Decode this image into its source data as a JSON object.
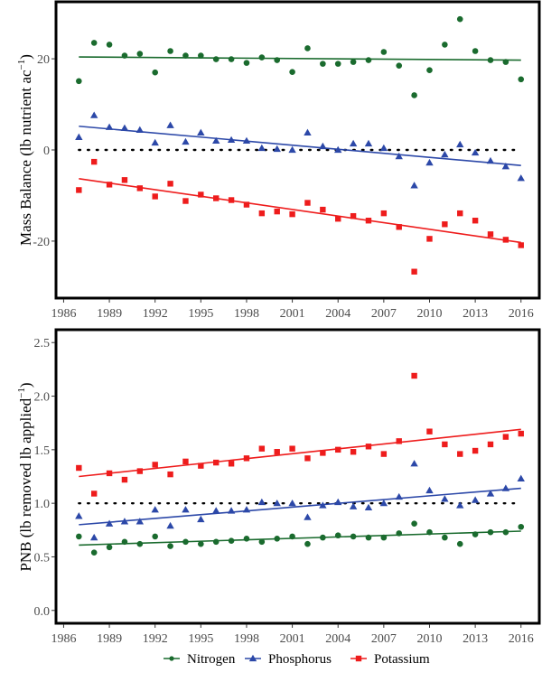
{
  "chart_data": [
    {
      "type": "scatter",
      "title": "",
      "xlabel": "",
      "ylabel": "Mass Balance (lb nutrient ac",
      "ylabel_superscript": "−1",
      "ylabel_suffix": ")",
      "xlim": [
        1985.5,
        2017.2
      ],
      "ylim": [
        -32.5,
        32.5
      ],
      "xticks": [
        1986,
        1989,
        1992,
        1995,
        1998,
        2001,
        2004,
        2007,
        2010,
        2013,
        2016
      ],
      "xtick_labels": [
        "1986",
        "1989",
        "1992",
        "1995",
        "1998",
        "2001",
        "2004",
        "2007",
        "2010",
        "2013",
        "2016"
      ],
      "yticks": [
        -20,
        0,
        20
      ],
      "ytick_labels": [
        "-20",
        "0",
        "20"
      ],
      "reference_line": {
        "value": 0,
        "style": "dotted"
      },
      "grid": false,
      "x": [
        1987,
        1988,
        1989,
        1990,
        1991,
        1992,
        1993,
        1994,
        1995,
        1996,
        1997,
        1998,
        1999,
        2000,
        2001,
        2002,
        2003,
        2004,
        2005,
        2006,
        2007,
        2008,
        2009,
        2010,
        2011,
        2012,
        2013,
        2014,
        2015,
        2016
      ],
      "series": [
        {
          "name": "Nitrogen",
          "marker": "circle",
          "values": [
            15.1,
            23.5,
            23.1,
            20.7,
            21.1,
            17.0,
            21.7,
            20.7,
            20.7,
            19.9,
            19.9,
            19.1,
            20.3,
            19.7,
            17.1,
            22.3,
            18.9,
            18.9,
            19.3,
            19.7,
            21.5,
            18.5,
            12.0,
            17.5,
            23.1,
            28.7,
            21.7,
            19.7,
            19.3,
            15.5
          ],
          "trend": [
            20.4,
            19.7
          ]
        },
        {
          "name": "Phosphorus",
          "marker": "triangle",
          "values": [
            2.8,
            7.6,
            5.0,
            4.8,
            4.4,
            1.6,
            5.4,
            1.8,
            3.8,
            2.0,
            2.2,
            2.0,
            0.4,
            0.2,
            0.0,
            3.8,
            0.8,
            0.0,
            1.4,
            1.4,
            0.4,
            -1.4,
            -7.8,
            -2.8,
            -1.0,
            1.2,
            -0.6,
            -2.4,
            -3.6,
            -6.2
          ],
          "trend": [
            5.2,
            -3.4
          ]
        },
        {
          "name": "Potassium",
          "marker": "square",
          "values": [
            -8.8,
            -2.6,
            -7.6,
            -6.6,
            -8.4,
            -10.2,
            -7.4,
            -11.2,
            -9.8,
            -10.6,
            -11.0,
            -12.0,
            -13.9,
            -13.5,
            -14.1,
            -11.6,
            -13.1,
            -15.1,
            -14.5,
            -15.5,
            -13.9,
            -16.9,
            -26.7,
            -19.5,
            -16.3,
            -13.9,
            -15.5,
            -18.5,
            -19.7,
            -20.9
          ],
          "trend": [
            -6.3,
            -20.3
          ]
        }
      ]
    },
    {
      "type": "scatter",
      "title": "",
      "xlabel": "",
      "ylabel": "PNB (lb removed lb applied",
      "ylabel_superscript": "−1",
      "ylabel_suffix": ")",
      "xlim": [
        1985.5,
        2017.2
      ],
      "ylim": [
        -0.12,
        2.62
      ],
      "xticks": [
        1986,
        1989,
        1992,
        1995,
        1998,
        2001,
        2004,
        2007,
        2010,
        2013,
        2016
      ],
      "xtick_labels": [
        "1986",
        "1989",
        "1992",
        "1995",
        "1998",
        "2001",
        "2004",
        "2007",
        "2010",
        "2013",
        "2016"
      ],
      "yticks": [
        0.0,
        0.5,
        1.0,
        1.5,
        2.0,
        2.5
      ],
      "ytick_labels": [
        "0.0",
        "0.5",
        "1.0",
        "1.5",
        "2.0",
        "2.5"
      ],
      "reference_line": {
        "value": 1.0,
        "style": "dotted"
      },
      "grid": false,
      "x": [
        1987,
        1988,
        1989,
        1990,
        1991,
        1992,
        1993,
        1994,
        1995,
        1996,
        1997,
        1998,
        1999,
        2000,
        2001,
        2002,
        2003,
        2004,
        2005,
        2006,
        2007,
        2008,
        2009,
        2010,
        2011,
        2012,
        2013,
        2014,
        2015,
        2016
      ],
      "series": [
        {
          "name": "Nitrogen",
          "marker": "circle",
          "values": [
            0.69,
            0.54,
            0.59,
            0.64,
            0.62,
            0.69,
            0.6,
            0.64,
            0.62,
            0.64,
            0.65,
            0.67,
            0.64,
            0.67,
            0.69,
            0.62,
            0.68,
            0.7,
            0.69,
            0.68,
            0.68,
            0.72,
            0.81,
            0.73,
            0.68,
            0.62,
            0.71,
            0.73,
            0.73,
            0.78
          ],
          "trend": [
            0.61,
            0.74
          ]
        },
        {
          "name": "Phosphorus",
          "marker": "triangle",
          "values": [
            0.88,
            0.68,
            0.81,
            0.83,
            0.83,
            0.94,
            0.79,
            0.94,
            0.85,
            0.93,
            0.93,
            0.94,
            1.01,
            1.0,
            1.0,
            0.87,
            0.98,
            1.01,
            0.97,
            0.96,
            1.0,
            1.06,
            1.37,
            1.12,
            1.04,
            0.98,
            1.03,
            1.09,
            1.14,
            1.23
          ],
          "trend": [
            0.8,
            1.14
          ]
        },
        {
          "name": "Potassium",
          "marker": "square",
          "values": [
            1.33,
            1.09,
            1.28,
            1.22,
            1.3,
            1.36,
            1.27,
            1.39,
            1.35,
            1.38,
            1.37,
            1.42,
            1.51,
            1.48,
            1.51,
            1.42,
            1.47,
            1.5,
            1.48,
            1.53,
            1.46,
            1.58,
            2.19,
            1.67,
            1.55,
            1.46,
            1.49,
            1.55,
            1.62,
            1.65
          ],
          "trend": [
            1.25,
            1.69
          ]
        }
      ]
    }
  ],
  "legend": {
    "placement": "bottom",
    "items": [
      {
        "name": "Nitrogen",
        "marker": "circle"
      },
      {
        "name": "Phosphorus",
        "marker": "triangle"
      },
      {
        "name": "Potassium",
        "marker": "square"
      }
    ]
  },
  "colors": {
    "Nitrogen": "#1a6b2e",
    "Phosphorus": "#2c48a8",
    "Potassium": "#ee1c1c",
    "reference": "#000000",
    "frame": "#000000",
    "tick_label": "#4d4d4d"
  }
}
